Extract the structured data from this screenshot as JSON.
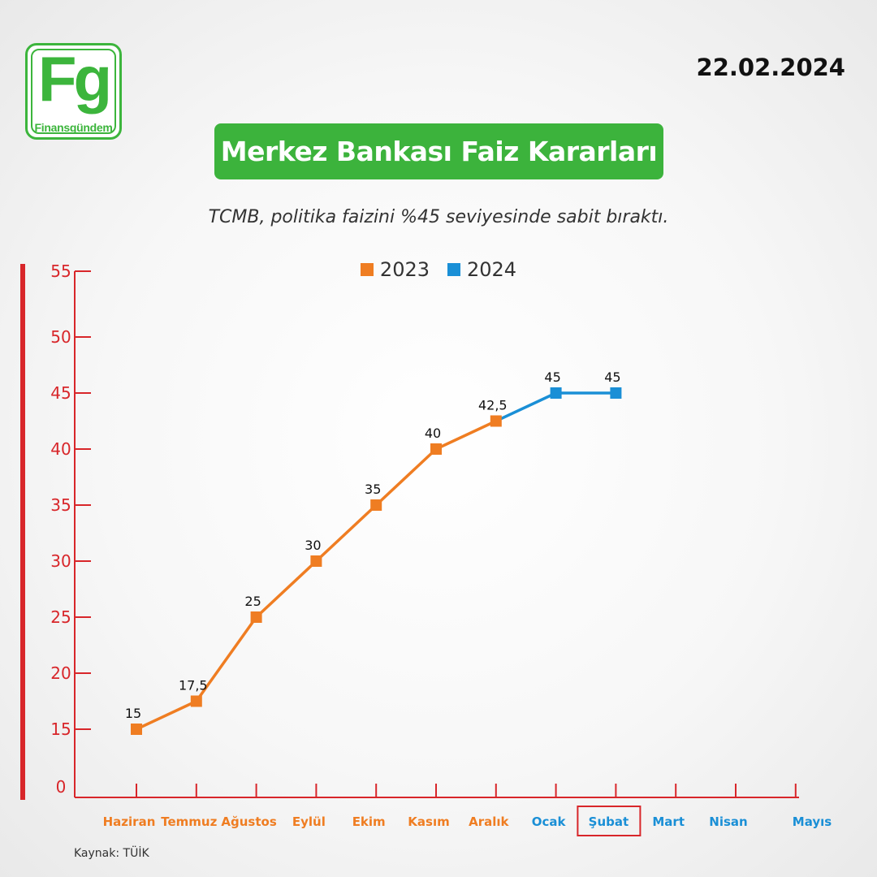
{
  "brand": {
    "logo_letters": "Fg",
    "logo_word": "Finansgündem",
    "color": "#3cb53c"
  },
  "date": "22.02.2024",
  "title": "Merkez Bankası Faiz Kararları",
  "subtitle": "TCMB, politika faizini %45 seviyesinde sabit bıraktı.",
  "source": "Kaynak: TÜİK",
  "chart_data": {
    "type": "line",
    "categories": [
      "Haziran",
      "Temmuz",
      "Ağustos",
      "Eylül",
      "Ekim",
      "Kasım",
      "Aralık",
      "Ocak",
      "Şubat",
      "Mart",
      "Nisan",
      "Mayıs"
    ],
    "category_colors": [
      "#ef7d22",
      "#ef7d22",
      "#ef7d22",
      "#ef7d22",
      "#ef7d22",
      "#ef7d22",
      "#ef7d22",
      "#1a8fd6",
      "#1a8fd6",
      "#1a8fd6",
      "#1a8fd6",
      "#1a8fd6"
    ],
    "highlighted_category": "Şubat",
    "series": [
      {
        "name": "2023",
        "color": "#ef7d22",
        "points": [
          {
            "x": "Haziran",
            "y": 15,
            "label": "15"
          },
          {
            "x": "Temmuz",
            "y": 17.5,
            "label": "17,5"
          },
          {
            "x": "Ağustos",
            "y": 25,
            "label": "25"
          },
          {
            "x": "Eylül",
            "y": 30,
            "label": "30"
          },
          {
            "x": "Ekim",
            "y": 35,
            "label": "35"
          },
          {
            "x": "Kasım",
            "y": 40,
            "label": "40"
          },
          {
            "x": "Aralık",
            "y": 42.5,
            "label": "42,5"
          }
        ]
      },
      {
        "name": "2024",
        "color": "#1a8fd6",
        "connect_from": "Aralık",
        "points": [
          {
            "x": "Ocak",
            "y": 45,
            "label": "45"
          },
          {
            "x": "Şubat",
            "y": 45,
            "label": "45"
          }
        ]
      }
    ],
    "y_ticks": [
      {
        "label": "0",
        "value": 0
      },
      {
        "label": "15",
        "value": 15
      },
      {
        "label": "20",
        "value": 20
      },
      {
        "label": "25",
        "value": 25
      },
      {
        "label": "30",
        "value": 30
      },
      {
        "label": "35",
        "value": 35
      },
      {
        "label": "40",
        "value": 40
      },
      {
        "label": "45",
        "value": 45
      },
      {
        "label": "50",
        "value": 50
      },
      {
        "label": "55",
        "value": 55
      }
    ],
    "ylim": [
      0,
      55
    ],
    "axis_color": "#d8262a",
    "grid": false,
    "legend_position": "top-center"
  }
}
